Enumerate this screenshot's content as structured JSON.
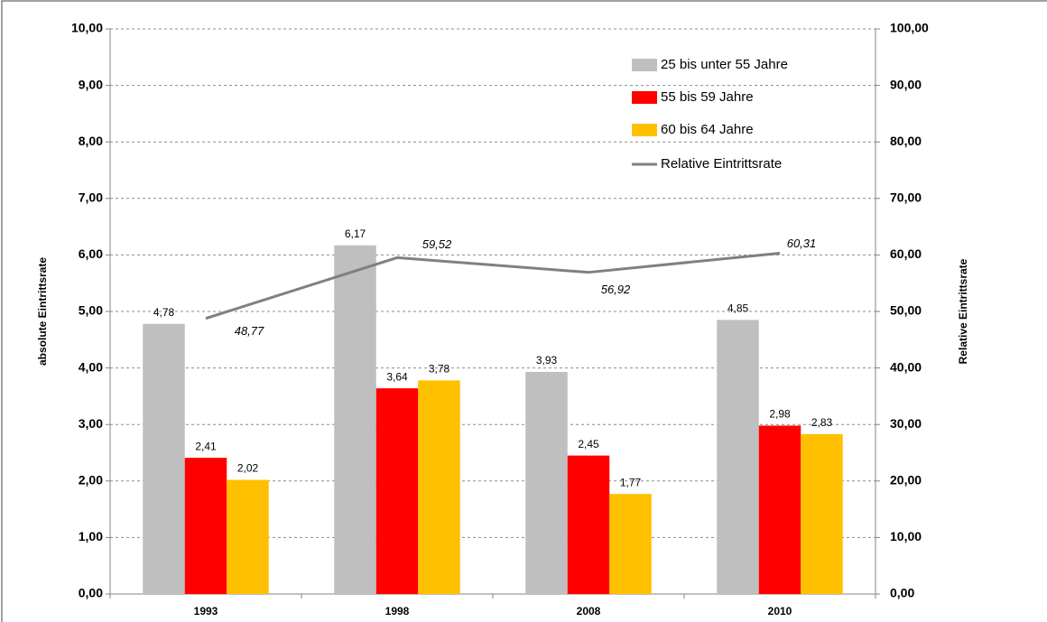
{
  "chart_data": {
    "type": "bar",
    "categories": [
      "1993",
      "1998",
      "2008",
      "2010"
    ],
    "series": [
      {
        "name": "25 bis unter 55 Jahre",
        "color": "#bfbfbf",
        "values": [
          4.78,
          6.17,
          3.93,
          4.85
        ],
        "value_labels": [
          "4,78",
          "6,17",
          "3,93",
          "4,85"
        ]
      },
      {
        "name": "55 bis 59 Jahre",
        "color": "#ff0000",
        "values": [
          2.41,
          3.64,
          2.45,
          2.98
        ],
        "value_labels": [
          "2,41",
          "3,64",
          "2,45",
          "2,98"
        ]
      },
      {
        "name": "60 bis 64 Jahre",
        "color": "#ffc000",
        "values": [
          2.02,
          3.78,
          1.77,
          2.83
        ],
        "value_labels": [
          "2,02",
          "3,78",
          "1,77",
          "2,83"
        ]
      },
      {
        "name": "Relative Eintrittsrate",
        "type": "line",
        "axis": "y2",
        "color": "#808080",
        "values": [
          48.77,
          59.52,
          56.92,
          60.31
        ],
        "value_labels": [
          "48,77",
          "59,52",
          "56,92",
          "60,31"
        ]
      }
    ],
    "y_label": "absolute Eintrittsrate",
    "y2_label": "Relative Eintrittsrate",
    "ylim": [
      0,
      10
    ],
    "yticks": [
      {
        "value": 0,
        "label": "0,00"
      },
      {
        "value": 1,
        "label": "1,00"
      },
      {
        "value": 2,
        "label": "2,00"
      },
      {
        "value": 3,
        "label": "3,00"
      },
      {
        "value": 4,
        "label": "4,00"
      },
      {
        "value": 5,
        "label": "5,00"
      },
      {
        "value": 6,
        "label": "6,00"
      },
      {
        "value": 7,
        "label": "7,00"
      },
      {
        "value": 8,
        "label": "8,00"
      },
      {
        "value": 9,
        "label": "9,00"
      },
      {
        "value": 10,
        "label": "10,00"
      }
    ],
    "y2lim": [
      0,
      100
    ],
    "y2ticks": [
      {
        "value": 0,
        "label": "0,00"
      },
      {
        "value": 10,
        "label": "10,00"
      },
      {
        "value": 20,
        "label": "20,00"
      },
      {
        "value": 30,
        "label": "30,00"
      },
      {
        "value": 40,
        "label": "40,00"
      },
      {
        "value": 50,
        "label": "50,00"
      },
      {
        "value": 60,
        "label": "60,00"
      },
      {
        "value": 70,
        "label": "70,00"
      },
      {
        "value": 80,
        "label": "80,00"
      },
      {
        "value": 90,
        "label": "90,00"
      },
      {
        "value": 100,
        "label": "100,00"
      }
    ],
    "grid": true,
    "legend": "top-right"
  }
}
